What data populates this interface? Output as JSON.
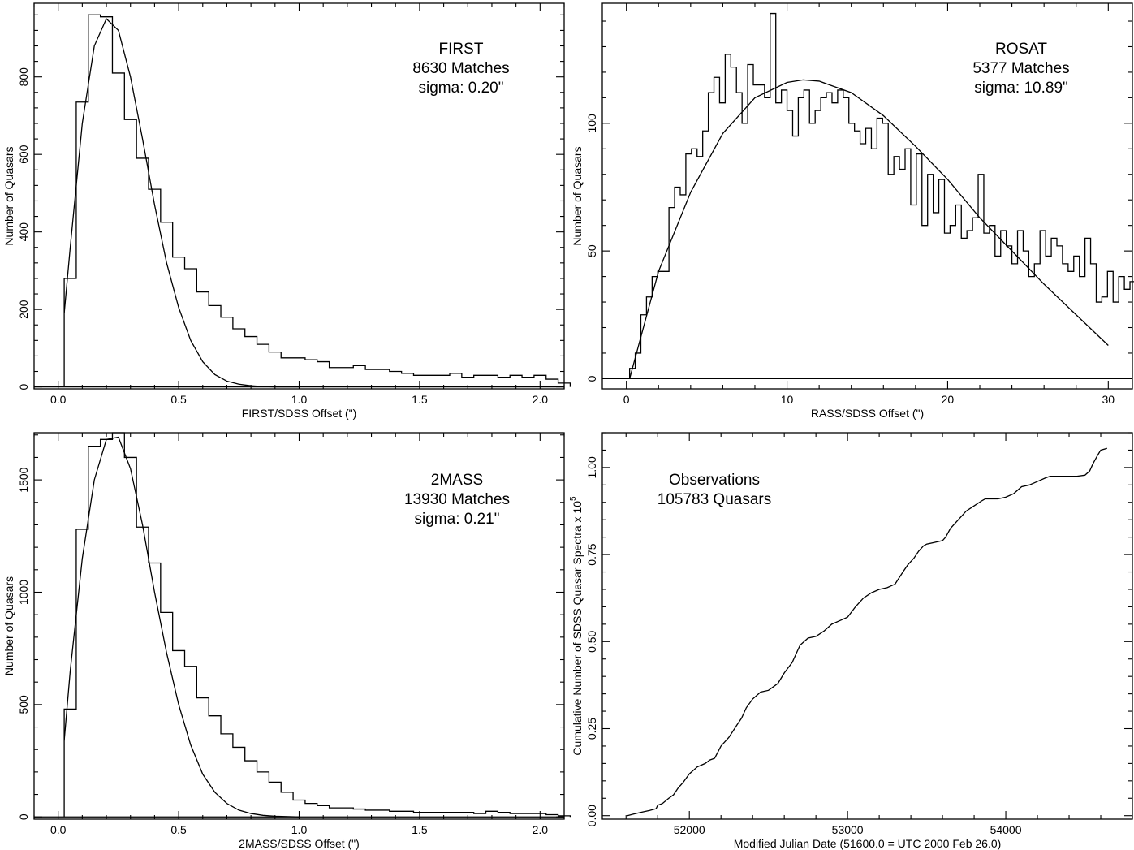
{
  "chart_data": [
    {
      "type": "histogram",
      "title": "FIRST",
      "annotations": [
        "FIRST",
        "8630 Matches",
        "sigma:  0.20\""
      ],
      "xlabel": "FIRST/SDSS Offset (\")",
      "ylabel": "Number of Quasars",
      "xlim": [
        -0.1,
        2.1
      ],
      "ylim": [
        -5,
        990
      ],
      "xticks": [
        0.0,
        0.5,
        1.0,
        1.5,
        2.0
      ],
      "xticklabels": [
        "0.0",
        "0.5",
        "1.0",
        "1.5",
        "2.0"
      ],
      "yticks": [
        0,
        200,
        400,
        600,
        800
      ],
      "yticklabels": [
        "0",
        "200",
        "400",
        "600",
        "800"
      ],
      "bin_width": 0.05,
      "bin_start": 0.025,
      "counts": [
        280,
        735,
        960,
        955,
        810,
        690,
        590,
        510,
        425,
        335,
        305,
        245,
        210,
        180,
        150,
        130,
        110,
        90,
        75,
        75,
        70,
        65,
        50,
        50,
        55,
        45,
        45,
        40,
        35,
        30,
        30,
        30,
        35,
        25,
        30,
        30,
        25,
        30,
        25,
        30,
        20,
        10
      ],
      "fit_x": [
        0.025,
        0.05,
        0.1,
        0.15,
        0.2,
        0.25,
        0.3,
        0.35,
        0.4,
        0.45,
        0.5,
        0.55,
        0.6,
        0.65,
        0.7,
        0.75,
        0.8,
        0.85,
        0.9,
        1.0
      ],
      "fit_y": [
        190,
        360,
        680,
        880,
        950,
        920,
        800,
        640,
        470,
        320,
        205,
        120,
        65,
        32,
        15,
        7,
        3,
        1,
        0,
        0
      ]
    },
    {
      "type": "histogram",
      "title": "ROSAT",
      "annotations": [
        "ROSAT",
        "5377 Matches",
        "sigma: 10.89\""
      ],
      "xlabel": "RASS/SDSS Offset (\")",
      "ylabel": "Number of Quasars",
      "xlim": [
        -1.5,
        31.5
      ],
      "ylim": [
        -4,
        147
      ],
      "xticks": [
        0,
        10,
        20,
        30
      ],
      "xticklabels": [
        "0",
        "10",
        "20",
        "30"
      ],
      "yticks": [
        0,
        50,
        100
      ],
      "yticklabels": [
        "0",
        "50",
        "100"
      ],
      "bin_width": 0.35,
      "bin_start": 0.2,
      "counts": [
        4,
        10,
        25,
        32,
        40,
        42,
        42,
        67,
        75,
        72,
        88,
        90,
        87,
        97,
        112,
        118,
        108,
        127,
        122,
        112,
        100,
        123,
        115,
        115,
        110,
        143,
        108,
        113,
        105,
        95,
        110,
        113,
        100,
        105,
        110,
        112,
        108,
        113,
        110,
        100,
        97,
        92,
        98,
        90,
        102,
        100,
        80,
        87,
        82,
        90,
        68,
        88,
        60,
        80,
        65,
        78,
        57,
        60,
        68,
        55,
        58,
        63,
        80,
        57,
        60,
        48,
        58,
        52,
        45,
        58,
        50,
        40,
        45,
        58,
        48,
        55,
        52,
        45,
        42,
        48,
        40,
        55,
        45,
        30,
        32,
        42,
        30,
        40,
        35,
        38,
        30,
        30
      ],
      "fit_x": [
        0.2,
        2,
        4,
        6,
        8,
        10,
        11,
        12,
        14,
        16,
        18,
        20,
        22,
        24,
        26,
        28,
        30
      ],
      "fit_y": [
        0,
        42,
        73,
        96,
        110,
        116,
        117,
        116.5,
        112,
        103,
        91,
        78,
        63,
        50,
        37,
        25,
        13
      ]
    },
    {
      "type": "histogram",
      "title": "2MASS",
      "annotations": [
        "2MASS",
        "13930 Matches",
        "sigma:  0.21\""
      ],
      "xlabel": "2MASS/SDSS Offset (\")",
      "ylabel": "Number of Quasars",
      "xlim": [
        -0.1,
        2.1
      ],
      "ylim": [
        -10,
        1710
      ],
      "xticks": [
        0.0,
        0.5,
        1.0,
        1.5,
        2.0
      ],
      "xticklabels": [
        "0.0",
        "0.5",
        "1.0",
        "1.5",
        "2.0"
      ],
      "yticks": [
        0,
        500,
        1000,
        1500
      ],
      "yticklabels": [
        "0",
        "500",
        "1000",
        "1500"
      ],
      "bin_width": 0.05,
      "bin_start": 0.025,
      "counts": [
        480,
        1280,
        1650,
        1680,
        1710,
        1600,
        1290,
        1130,
        910,
        740,
        670,
        530,
        450,
        370,
        310,
        250,
        200,
        155,
        110,
        75,
        60,
        50,
        40,
        40,
        35,
        30,
        30,
        25,
        25,
        20,
        20,
        20,
        20,
        20,
        15,
        25,
        20,
        15,
        15,
        15,
        10,
        5
      ],
      "fit_x": [
        0.025,
        0.05,
        0.1,
        0.15,
        0.2,
        0.25,
        0.3,
        0.35,
        0.4,
        0.45,
        0.5,
        0.55,
        0.6,
        0.65,
        0.7,
        0.75,
        0.8,
        0.85,
        0.9,
        1.0
      ],
      "fit_y": [
        340,
        650,
        1150,
        1500,
        1680,
        1690,
        1550,
        1300,
        1000,
        730,
        500,
        320,
        190,
        110,
        60,
        30,
        15,
        7,
        3,
        0
      ]
    },
    {
      "type": "line",
      "title": "Observations",
      "annotations": [
        "Observations",
        "105783 Quasars"
      ],
      "xlabel": "Modified Julian Date    (51600.0 = UTC 2000 Feb 26.0)",
      "ylabel": "Cumulative Number of SDSS Quasar Spectra  x 10",
      "ylabel_exponent": "5",
      "xlim": [
        51450,
        54800
      ],
      "ylim": [
        -0.01,
        1.1
      ],
      "xticks": [
        52000,
        53000,
        54000
      ],
      "xticklabels": [
        "52000",
        "53000",
        "54000"
      ],
      "yticks": [
        0.0,
        0.25,
        0.5,
        0.75,
        1.0
      ],
      "yticklabels": [
        "0.00",
        "0.25",
        "0.50",
        "0.75",
        "1.00"
      ],
      "x": [
        51608,
        51650,
        51700,
        51750,
        51790,
        51800,
        51830,
        51870,
        51900,
        51930,
        51960,
        52000,
        52050,
        52100,
        52130,
        52160,
        52200,
        52250,
        52300,
        52330,
        52360,
        52400,
        52450,
        52500,
        52530,
        52560,
        52600,
        52650,
        52680,
        52700,
        52750,
        52800,
        52850,
        52900,
        52950,
        53000,
        53050,
        53100,
        53150,
        53200,
        53250,
        53300,
        53350,
        53380,
        53420,
        53450,
        53480,
        53500,
        53550,
        53600,
        53620,
        53650,
        53700,
        53750,
        53800,
        53850,
        53870,
        53900,
        53950,
        54000,
        54050,
        54100,
        54150,
        54200,
        54250,
        54280,
        54300,
        54350,
        54400,
        54450,
        54500,
        54530,
        54550,
        54580,
        54600,
        54640
      ],
      "y": [
        0.0,
        0.005,
        0.01,
        0.015,
        0.02,
        0.03,
        0.035,
        0.05,
        0.06,
        0.08,
        0.095,
        0.12,
        0.14,
        0.15,
        0.16,
        0.165,
        0.2,
        0.225,
        0.26,
        0.28,
        0.31,
        0.335,
        0.355,
        0.36,
        0.37,
        0.38,
        0.41,
        0.44,
        0.47,
        0.49,
        0.51,
        0.515,
        0.53,
        0.55,
        0.56,
        0.57,
        0.6,
        0.625,
        0.64,
        0.65,
        0.655,
        0.665,
        0.7,
        0.72,
        0.74,
        0.76,
        0.775,
        0.78,
        0.785,
        0.79,
        0.8,
        0.825,
        0.85,
        0.875,
        0.89,
        0.905,
        0.91,
        0.91,
        0.91,
        0.915,
        0.925,
        0.945,
        0.95,
        0.96,
        0.97,
        0.975,
        0.975,
        0.975,
        0.975,
        0.975,
        0.978,
        0.99,
        1.01,
        1.035,
        1.05,
        1.055
      ]
    }
  ]
}
